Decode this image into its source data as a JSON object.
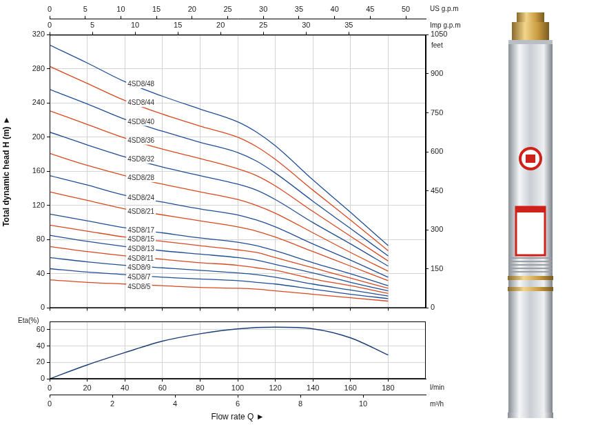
{
  "chart_data": [
    {
      "type": "line",
      "y_label": "Total dynamic head H (m) ►",
      "x": [
        0,
        20,
        40,
        60,
        80,
        100,
        110,
        120,
        140,
        160,
        180
      ],
      "xlim": [
        0,
        200
      ],
      "xticks": [
        0,
        20,
        40,
        60,
        80,
        100,
        120,
        140,
        160,
        180
      ],
      "ylim": [
        0,
        320
      ],
      "yticks": [
        0,
        40,
        80,
        120,
        160,
        200,
        240,
        280,
        320
      ],
      "y2_label": "feet",
      "y2lim": [
        0,
        1050
      ],
      "y2ticks": [
        0,
        150,
        300,
        450,
        600,
        750,
        900,
        1050
      ],
      "x2_axes": [
        {
          "label": "US g.p.m",
          "lim": [
            0,
            52.8
          ],
          "ticks": [
            0,
            5,
            10,
            15,
            20,
            25,
            30,
            35,
            40,
            45,
            50
          ]
        },
        {
          "label": "Imp g.p.m",
          "lim": [
            0,
            44
          ],
          "ticks": [
            0,
            5,
            10,
            15,
            20,
            25,
            30,
            35
          ]
        }
      ],
      "grid": true,
      "tick_labels": "y",
      "series": [
        {
          "name": "4SD8/48",
          "color": "#1f4e96",
          "values": [
            308,
            287,
            265,
            248,
            233,
            218,
            206,
            190,
            150,
            112,
            73
          ]
        },
        {
          "name": "4SD8/44",
          "color": "#d9481f",
          "values": [
            283,
            263,
            243,
            227,
            213,
            200,
            189,
            174,
            138,
            103,
            67
          ]
        },
        {
          "name": "4SD8/40",
          "color": "#1f4e96",
          "values": [
            256,
            239,
            221,
            207,
            194,
            182,
            172,
            158,
            125,
            93,
            61
          ]
        },
        {
          "name": "4SD8/36",
          "color": "#d9481f",
          "values": [
            231,
            215,
            199,
            186,
            175,
            163,
            155,
            143,
            113,
            84,
            55
          ]
        },
        {
          "name": "4SD8/32",
          "color": "#1f4e96",
          "values": [
            206,
            191,
            177,
            165,
            155,
            145,
            138,
            127,
            100,
            75,
            49
          ]
        },
        {
          "name": "4SD8/28",
          "color": "#d9481f",
          "values": [
            181,
            167,
            155,
            145,
            136,
            127,
            120,
            111,
            88,
            65,
            43
          ]
        },
        {
          "name": "4SD8/24",
          "color": "#1f4e96",
          "values": [
            155,
            144,
            132,
            124,
            116,
            109,
            103,
            95,
            75,
            56,
            36
          ]
        },
        {
          "name": "4SD8/21",
          "color": "#d9481f",
          "values": [
            136,
            126,
            116,
            109,
            102,
            95,
            90,
            83,
            66,
            49,
            32
          ]
        },
        {
          "name": "4SD8/17",
          "color": "#1f4e96",
          "values": [
            110,
            102,
            94,
            88,
            82,
            77,
            73,
            67,
            53,
            40,
            26
          ]
        },
        {
          "name": "4SD8/15",
          "color": "#d9481f",
          "values": [
            97,
            90,
            83,
            78,
            73,
            68,
            65,
            59,
            47,
            35,
            23
          ]
        },
        {
          "name": "4SD8/13",
          "color": "#1f4e96",
          "values": [
            85,
            78,
            72,
            67,
            63,
            59,
            56,
            51,
            41,
            30,
            20
          ]
        },
        {
          "name": "4SD8/11",
          "color": "#d9481f",
          "values": [
            72,
            66,
            61,
            57,
            53,
            50,
            47,
            44,
            34,
            26,
            17
          ]
        },
        {
          "name": "4SD8/9",
          "color": "#1f4e96",
          "values": [
            59,
            54,
            50,
            47,
            44,
            41,
            39,
            36,
            28,
            21,
            14
          ]
        },
        {
          "name": "4SD8/7",
          "color": "#1f4e96",
          "values": [
            46,
            42,
            39,
            36,
            34,
            32,
            30,
            28,
            22,
            16,
            11
          ]
        },
        {
          "name": "4SD8/5",
          "color": "#d9481f",
          "values": [
            33,
            30,
            28,
            26,
            24,
            23,
            22,
            20,
            16,
            12,
            8
          ]
        }
      ]
    },
    {
      "type": "line",
      "y_label": "Eta(%)",
      "x_label": "Flow rate Q ►",
      "x_unit": "l/min",
      "x": [
        0,
        20,
        40,
        60,
        80,
        100,
        120,
        140,
        160,
        180
      ],
      "values": [
        0,
        17,
        32,
        46,
        55,
        61,
        63,
        61,
        50,
        29
      ],
      "color": "#1b3d78",
      "xlim": [
        0,
        200
      ],
      "xticks": [
        0,
        20,
        40,
        60,
        80,
        100,
        120,
        140,
        160,
        180
      ],
      "ylim": [
        0,
        70
      ],
      "yticks": [
        0,
        20,
        40,
        60
      ],
      "x2_axes": [
        {
          "label": "m³/h",
          "lim": [
            0,
            12
          ],
          "ticks": [
            0,
            2,
            4,
            6,
            8,
            10
          ]
        }
      ],
      "grid": true
    }
  ]
}
